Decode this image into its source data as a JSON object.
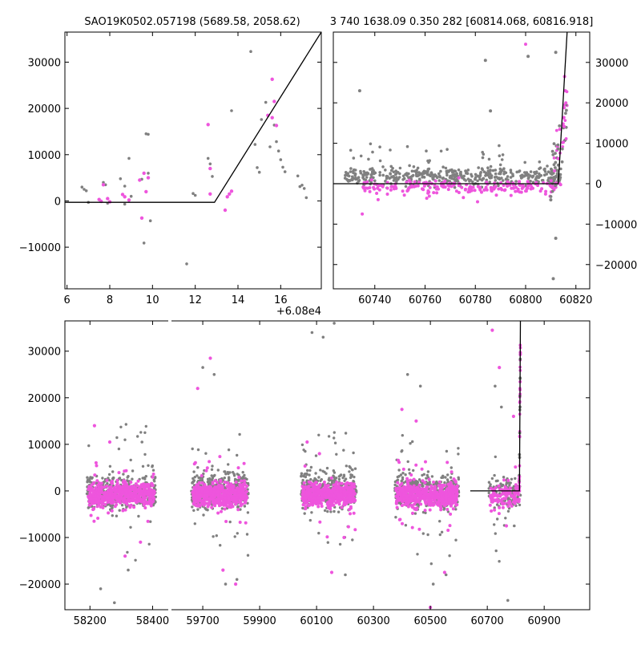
{
  "figure": {
    "title_left": "SAO19K0502.057198 (5689.58, 2058.62)",
    "title_right": "3 740 1638.09 0.350 282 [60814.068, 60816.918]",
    "colors": {
      "gray": "#808080",
      "magenta": "#ee55dd",
      "line": "#000000"
    }
  },
  "chart_data": [
    {
      "id": "zoom-left",
      "type": "scatter",
      "title": "SAO19K0502.057198 (5689.58, 2058.62)",
      "xlim": [
        60805.9,
        60817.9
      ],
      "ylim": [
        -19000,
        36500
      ],
      "x_ticks": [
        60806,
        60808,
        60810,
        60812,
        60814,
        60816
      ],
      "x_tick_labels": [
        "6",
        "8",
        "10",
        "12",
        "14",
        "16"
      ],
      "x_offset_label": "+6.08e4",
      "y_ticks": [
        -10000,
        0,
        10000,
        20000,
        30000
      ],
      "y_tick_labels": [
        "−10000",
        "0",
        "10000",
        "20000",
        "30000"
      ],
      "y_axis_side": "left",
      "series": [
        {
          "name": "gray",
          "color": "#808080",
          "x": [
            60806.7,
            60806.8,
            60806.9,
            60807.0,
            60807.7,
            60807.8,
            60807.9,
            60808.5,
            60808.7,
            60808.9,
            60809.5,
            60809.7,
            60809.8,
            60809.9,
            60809.6,
            60809.8,
            60811.6,
            60811.9,
            60812.0,
            60812.6,
            60812.7,
            60812.8,
            60813.7,
            60814.6,
            60814.8,
            60814.9,
            60815.0,
            60815.1,
            60815.3,
            60815.5,
            60815.7,
            60815.8,
            60815.9,
            60816.0,
            60816.1,
            60816.2,
            60816.8,
            60816.9,
            60817.0,
            60817.1,
            60817.2,
            60808.7,
            60809.0
          ],
          "y": [
            3000,
            2500,
            2200,
            -300,
            4000,
            3500,
            -500,
            4800,
            3200,
            9200,
            4700,
            14500,
            14400,
            -4300,
            -9100,
            6000,
            -13600,
            1600,
            1200,
            9200,
            8000,
            5300,
            19500,
            32300,
            12200,
            7200,
            6200,
            17600,
            21300,
            11700,
            16400,
            12800,
            10800,
            8900,
            7300,
            6300,
            5400,
            3100,
            3400,
            2700,
            700,
            -700,
            1000
          ]
        },
        {
          "name": "magenta",
          "color": "#ee55dd",
          "x": [
            60807.5,
            60807.6,
            60807.7,
            60807.9,
            60808.0,
            60808.6,
            60808.7,
            60808.9,
            60809.4,
            60809.6,
            60809.7,
            60809.8,
            60809.5,
            60812.6,
            60812.7,
            60812.7,
            60813.4,
            60813.5,
            60813.6,
            60813.7,
            60815.4,
            60815.6,
            60815.7,
            60815.6,
            60815.8
          ],
          "y": [
            300,
            -100,
            3500,
            500,
            -200,
            1400,
            900,
            200,
            4500,
            6000,
            2000,
            5000,
            -3700,
            16500,
            7000,
            1500,
            -2000,
            900,
            1500,
            2100,
            18500,
            26300,
            21500,
            18000,
            16300
          ]
        }
      ],
      "model_line": {
        "x": [
          60805.9,
          60812.9,
          60817.9
        ],
        "y": [
          -300,
          -300,
          36500
        ]
      }
    },
    {
      "id": "zoom-right",
      "type": "scatter",
      "title": "3 740 1638.09 0.350 282 [60814.068, 60816.918]",
      "xlim": [
        60723.5,
        60825.5
      ],
      "ylim": [
        -26000,
        37500
      ],
      "x_ticks": [
        60740,
        60760,
        60780,
        60800,
        60820
      ],
      "x_tick_labels": [
        "60740",
        "60760",
        "60780",
        "60800",
        "60820"
      ],
      "y_ticks": [
        -20000,
        -10000,
        0,
        10000,
        20000,
        30000
      ],
      "y_tick_labels": [
        "−20000",
        "−10000",
        "0",
        "10000",
        "20000",
        "30000"
      ],
      "y_axis_side": "right",
      "outliers": [
        {
          "name": "gray",
          "color": "#808080",
          "x": [
            60734,
            60784,
            60801,
            60812,
            60812,
            60811,
            60810,
            60786
          ],
          "y": [
            23000,
            30500,
            31500,
            32500,
            -13500,
            -23500,
            -4000,
            18000
          ]
        },
        {
          "name": "magenta",
          "color": "#ee55dd",
          "x": [
            60735,
            60800,
            60815.5,
            60815.8,
            60816.0
          ],
          "y": [
            -7500,
            34500,
            26500,
            23000,
            20000
          ]
        }
      ],
      "model_line": {
        "x": [
          60723.5,
          60813.0,
          60816.5
        ],
        "y": [
          0,
          0,
          37500
        ]
      }
    },
    {
      "id": "full-range",
      "type": "scatter",
      "xlim": [
        58120,
        61060
      ],
      "ylim": [
        -25500,
        36500
      ],
      "x_ticks": [
        58200,
        58400,
        59700,
        59900,
        60100,
        60300,
        60500,
        60700,
        60900
      ],
      "x_tick_labels": [
        "58200",
        "58400",
        "59700",
        "59900",
        "60100",
        "60300",
        "60500",
        "60700",
        "60900"
      ],
      "y_ticks": [
        -20000,
        -10000,
        0,
        10000,
        20000,
        30000
      ],
      "y_tick_labels": [
        "−20000",
        "−10000",
        "0",
        "10000",
        "20000",
        "30000"
      ],
      "axis_break": "after 58400, before 59700",
      "seasons": [
        {
          "label": "season-1",
          "x_range": [
            58190,
            58410
          ],
          "gray_extremes_y": [
            -21000,
            -24000,
            -17000,
            10500
          ],
          "magenta_extremes_y": [
            14000,
            10500,
            -14000,
            -11000
          ]
        },
        {
          "label": "season-2",
          "x_range": [
            59660,
            59860
          ],
          "gray_extremes_y": [
            26500,
            25000,
            -20000,
            -19000
          ],
          "magenta_extremes_y": [
            22000,
            28500,
            -17000,
            -20000
          ]
        },
        {
          "label": "season-3",
          "x_range": [
            60045,
            60240
          ],
          "gray_extremes_y": [
            34000,
            33000,
            36000,
            -18000
          ],
          "magenta_extremes_y": [
            10500,
            8000,
            -17500,
            -10000
          ]
        },
        {
          "label": "season-4",
          "x_range": [
            60375,
            60600
          ],
          "gray_extremes_y": [
            25000,
            22500,
            -20000,
            -18000
          ],
          "magenta_extremes_y": [
            17500,
            15000,
            -25000,
            -17500
          ]
        },
        {
          "label": "season-5",
          "x_range": [
            60705,
            60817
          ],
          "gray_extremes_y": [
            22500,
            18000,
            -23500,
            -7500
          ],
          "magenta_extremes_y": [
            34500,
            26500,
            -7500,
            16000
          ]
        }
      ],
      "model_line": {
        "x": [
          60640,
          60813.0,
          60816.5
        ],
        "y": [
          0,
          0,
          36500
        ]
      }
    }
  ]
}
